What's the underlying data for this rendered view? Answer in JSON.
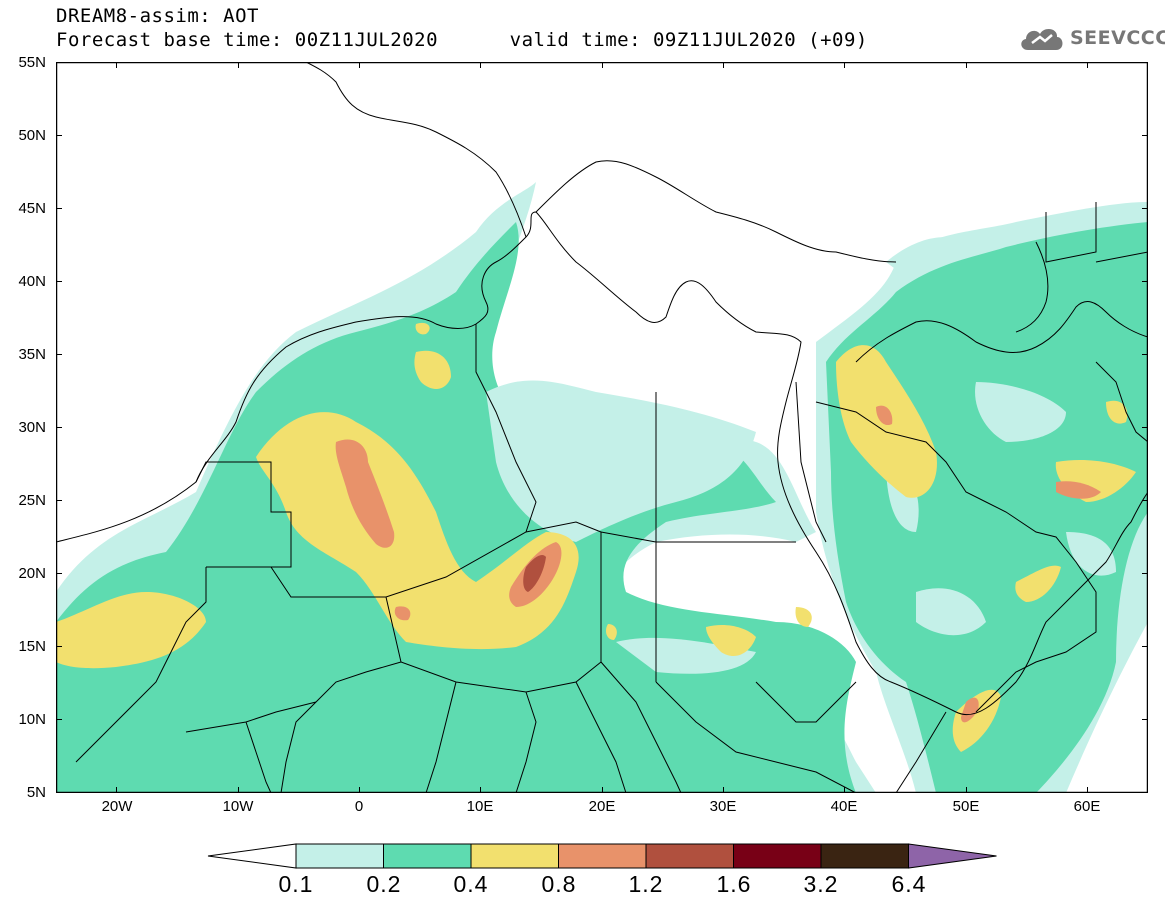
{
  "header": {
    "model_title": "DREAM8-assim: AOT",
    "forecast_line": "Forecast base time: 00Z11JUL2020      valid time: 09Z11JUL2020 (+09)"
  },
  "logo": {
    "text": "SEEVCCC",
    "icon": "cloud-icon"
  },
  "map": {
    "lat_labels": [
      "55N",
      "50N",
      "45N",
      "40N",
      "35N",
      "30N",
      "25N",
      "20N",
      "15N",
      "10N",
      "5N"
    ],
    "lon_labels": [
      "20W",
      "10W",
      "0",
      "10E",
      "20E",
      "30E",
      "40E",
      "50E",
      "60E"
    ],
    "lat_range": [
      5,
      55
    ],
    "lon_range": [
      -25,
      65
    ]
  },
  "colorbar": {
    "labels": [
      "0.1",
      "0.2",
      "0.4",
      "0.8",
      "1.2",
      "1.6",
      "3.2",
      "6.4"
    ],
    "colors": [
      "#c4f0e8",
      "#5edbb0",
      "#f2e06e",
      "#e8926a",
      "#b0503e",
      "#780016",
      "#3a2412",
      "#8e64a8"
    ],
    "lower_extend_color": "#ffffff"
  },
  "contour_colors": {
    "level_0_1": "#c4f0e8",
    "level_0_2": "#5edbb0",
    "level_0_4": "#f2e06e",
    "level_0_8": "#e8926a",
    "level_1_2": "#b0503e"
  }
}
